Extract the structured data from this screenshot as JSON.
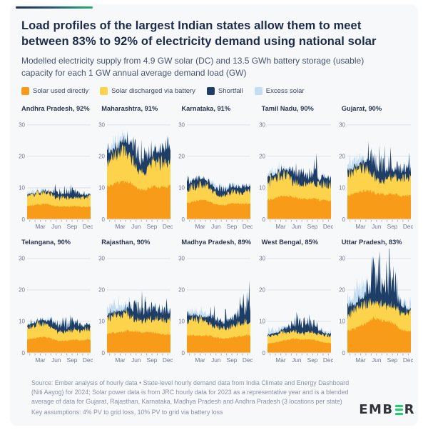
{
  "header": {
    "title": "Load profiles of the largest Indian states allow them to meet between 83% to 92% of electricity demand using national solar",
    "subtitle": "Modelled electricity supply from 4.9 GW solar (DC) and 13.5 GWh battery storage (usable) capacity for each 1 GW annual average demand load (GW)"
  },
  "colors": {
    "solar_direct": "#F79B19",
    "solar_battery": "#FCD34A",
    "shortfall": "#1F3E67",
    "excess_solar": "#C3DDF1",
    "gridline": "#DDE1EB",
    "accent_navy": "#1D3152",
    "accent_green": "#28B16D"
  },
  "legend": [
    {
      "label": "Solar used directly",
      "color": "#F79B19"
    },
    {
      "label": "Solar discharged via battery",
      "color": "#FCD34A"
    },
    {
      "label": "Shortfall",
      "color": "#1F3E67"
    },
    {
      "label": "Excess solar",
      "color": "#C3DDF1"
    }
  ],
  "chart_data": {
    "type": "area",
    "unit": "GW",
    "stack_order": [
      "solar_direct",
      "solar_battery",
      "shortfall",
      "excess_solar"
    ],
    "y_ticks": [
      0,
      10,
      20,
      30
    ],
    "ylim": [
      0,
      32
    ],
    "x_tick_labels": [
      "Mar",
      "Jun",
      "Sep",
      "Dec"
    ],
    "x_months": 12,
    "states": [
      {
        "label": "Andhra Pradesh, 92%",
        "name": "Andhra Pradesh",
        "share": "92%",
        "solar_direct": [
          4.2,
          4.5,
          4.7,
          4.8,
          4.7,
          4.3,
          4.0,
          4.0,
          4.1,
          4.2,
          4.0,
          4.0
        ],
        "solar_battery": [
          3.8,
          4.0,
          4.3,
          4.5,
          4.4,
          3.8,
          3.2,
          3.3,
          3.3,
          3.6,
          3.4,
          3.8
        ],
        "shortfall": [
          0.4,
          0.3,
          0.3,
          0.4,
          0.5,
          1.2,
          1.8,
          1.5,
          1.8,
          1.5,
          1.2,
          0.6
        ],
        "excess_solar": [
          0.6,
          0.8,
          0.7,
          0.5,
          0.4,
          0.2,
          0.1,
          0.1,
          0.3,
          0.3,
          0.3,
          0.5
        ]
      },
      {
        "label": "Maharashtra, 91%",
        "name": "Maharashtra",
        "share": "91%",
        "solar_direct": [
          10.5,
          11.0,
          11.5,
          12.0,
          12.0,
          11.0,
          9.5,
          9.5,
          10.0,
          10.5,
          10.0,
          10.5
        ],
        "solar_battery": [
          10.0,
          10.5,
          11.5,
          12.0,
          11.5,
          9.5,
          6.5,
          7.0,
          8.0,
          9.5,
          9.0,
          10.0
        ],
        "shortfall": [
          2.5,
          2.0,
          1.5,
          2.0,
          2.5,
          4.0,
          4.5,
          4.0,
          4.5,
          3.5,
          4.0,
          3.0
        ],
        "excess_solar": [
          1.5,
          2.5,
          2.5,
          2.0,
          1.5,
          0.5,
          0.2,
          0.2,
          0.5,
          0.8,
          0.8,
          1.0
        ]
      },
      {
        "label": "Karnataka, 91%",
        "name": "Karnataka",
        "share": "91%",
        "solar_direct": [
          5.0,
          5.5,
          6.0,
          6.0,
          5.8,
          5.0,
          4.5,
          4.5,
          4.8,
          5.0,
          4.8,
          5.0
        ],
        "solar_battery": [
          5.0,
          5.5,
          6.0,
          6.0,
          5.5,
          4.5,
          3.5,
          3.8,
          4.0,
          4.5,
          4.3,
          4.8
        ],
        "shortfall": [
          2.0,
          2.0,
          1.8,
          1.5,
          1.5,
          1.5,
          1.5,
          1.5,
          1.8,
          1.5,
          1.3,
          1.5
        ],
        "excess_solar": [
          0.3,
          0.4,
          0.5,
          0.5,
          0.8,
          1.5,
          1.2,
          1.2,
          1.2,
          1.0,
          0.8,
          0.8
        ]
      },
      {
        "label": "Tamil Nadu, 90%",
        "name": "Tamil Nadu",
        "share": "90%",
        "solar_direct": [
          6.0,
          6.5,
          7.0,
          7.5,
          7.5,
          7.0,
          6.5,
          6.5,
          6.5,
          6.5,
          6.0,
          6.0
        ],
        "solar_battery": [
          7.0,
          7.5,
          8.0,
          8.0,
          7.5,
          6.0,
          5.0,
          5.5,
          5.5,
          6.0,
          5.5,
          6.0
        ],
        "shortfall": [
          1.5,
          1.3,
          1.2,
          1.5,
          2.0,
          3.0,
          3.5,
          3.0,
          3.5,
          3.0,
          2.5,
          2.0
        ],
        "excess_solar": [
          1.5,
          1.8,
          1.5,
          1.2,
          0.8,
          0.3,
          0.2,
          0.2,
          0.4,
          0.5,
          0.5,
          0.8
        ]
      },
      {
        "label": "Gujarat, 90%",
        "name": "Gujarat",
        "share": "90%",
        "solar_direct": [
          7.5,
          8.0,
          8.5,
          9.0,
          9.0,
          8.5,
          8.0,
          8.0,
          8.0,
          8.0,
          7.5,
          7.5
        ],
        "solar_battery": [
          7.5,
          8.0,
          8.5,
          8.5,
          8.0,
          6.5,
          5.0,
          5.5,
          6.0,
          6.5,
          6.5,
          7.0
        ],
        "shortfall": [
          1.5,
          1.2,
          1.5,
          2.0,
          3.0,
          4.0,
          4.0,
          3.5,
          3.5,
          3.0,
          2.8,
          2.5
        ],
        "excess_solar": [
          2.5,
          3.0,
          2.5,
          2.0,
          1.2,
          0.5,
          0.2,
          0.2,
          0.5,
          0.5,
          0.5,
          1.0
        ]
      },
      {
        "label": "Telangana, 90%",
        "name": "Telangana",
        "share": "90%",
        "solar_direct": [
          4.2,
          4.5,
          4.8,
          5.0,
          4.8,
          4.2,
          3.8,
          3.8,
          4.0,
          4.2,
          4.0,
          4.2
        ],
        "solar_battery": [
          4.2,
          4.5,
          5.0,
          5.0,
          4.8,
          3.8,
          3.2,
          3.3,
          3.5,
          4.0,
          3.8,
          4.0
        ],
        "shortfall": [
          1.0,
          1.0,
          1.0,
          1.2,
          1.5,
          2.0,
          2.2,
          2.0,
          2.5,
          2.0,
          1.5,
          1.2
        ],
        "excess_solar": [
          0.4,
          0.5,
          0.5,
          0.5,
          0.8,
          1.0,
          0.8,
          0.8,
          0.8,
          0.6,
          0.5,
          0.5
        ]
      },
      {
        "label": "Rajasthan, 90%",
        "name": "Rajasthan",
        "share": "90%",
        "solar_direct": [
          6.0,
          6.2,
          6.5,
          6.8,
          7.0,
          7.0,
          6.5,
          6.5,
          6.5,
          6.5,
          6.0,
          6.0
        ],
        "solar_battery": [
          5.5,
          6.0,
          6.5,
          6.5,
          6.0,
          5.0,
          4.5,
          4.8,
          5.0,
          5.5,
          5.5,
          5.8
        ],
        "shortfall": [
          1.5,
          1.2,
          1.0,
          1.2,
          2.0,
          3.2,
          3.2,
          2.8,
          2.8,
          2.5,
          2.5,
          2.5
        ],
        "excess_solar": [
          2.0,
          2.5,
          3.0,
          2.5,
          2.0,
          0.8,
          0.3,
          0.3,
          0.8,
          0.8,
          0.8,
          1.0
        ]
      },
      {
        "label": "Madhya Pradesh, 89%",
        "name": "Madhya Pradesh",
        "share": "89%",
        "solar_direct": [
          5.5,
          5.5,
          5.5,
          5.5,
          5.5,
          5.2,
          4.8,
          4.5,
          4.8,
          5.0,
          5.2,
          5.5
        ],
        "solar_battery": [
          5.5,
          5.8,
          6.0,
          5.8,
          5.2,
          4.5,
          3.8,
          4.0,
          4.2,
          4.8,
          5.0,
          5.2
        ],
        "shortfall": [
          1.8,
          1.5,
          1.2,
          1.2,
          1.5,
          2.0,
          2.2,
          1.8,
          2.0,
          2.0,
          3.5,
          4.5
        ],
        "excess_solar": [
          0.8,
          1.5,
          1.8,
          1.8,
          1.5,
          0.8,
          0.3,
          0.3,
          0.8,
          0.8,
          0.5,
          0.3
        ]
      },
      {
        "label": "West Bengal, 85%",
        "name": "West Bengal",
        "share": "85%",
        "solar_direct": [
          3.0,
          3.2,
          3.5,
          4.0,
          4.2,
          4.5,
          4.3,
          4.2,
          4.2,
          4.0,
          3.5,
          3.2
        ],
        "solar_battery": [
          2.8,
          3.0,
          3.2,
          3.2,
          3.0,
          2.8,
          2.5,
          2.6,
          2.8,
          2.8,
          2.8,
          2.8
        ],
        "shortfall": [
          0.5,
          0.5,
          0.5,
          0.8,
          1.5,
          2.5,
          2.8,
          2.5,
          2.8,
          2.2,
          1.0,
          0.5
        ],
        "excess_solar": [
          1.5,
          1.8,
          1.5,
          1.2,
          0.8,
          0.3,
          0.2,
          0.2,
          0.3,
          0.5,
          0.6,
          0.8
        ]
      },
      {
        "label": "Uttar Pradesh, 83%",
        "name": "Uttar Pradesh",
        "share": "83%",
        "solar_direct": [
          7.0,
          7.5,
          8.0,
          9.0,
          10.0,
          11.0,
          10.5,
          10.0,
          10.0,
          9.0,
          7.5,
          7.0
        ],
        "solar_battery": [
          6.5,
          7.0,
          7.5,
          7.5,
          7.0,
          6.5,
          6.0,
          6.0,
          6.5,
          6.5,
          6.5,
          6.5
        ],
        "shortfall": [
          1.5,
          1.5,
          1.5,
          2.5,
          4.5,
          7.5,
          7.0,
          6.5,
          7.0,
          5.5,
          2.5,
          1.5
        ],
        "excess_solar": [
          4.0,
          5.0,
          5.5,
          4.5,
          2.5,
          0.8,
          0.3,
          0.3,
          0.8,
          1.5,
          2.5,
          2.5
        ]
      }
    ]
  },
  "footer": {
    "source": "Source: Ember analysis of hourly data • State-level hourly demand data from India Climate and Energy Dashboard (Niti Aayog) for 2024; Solar power data is from JRC hourly data for 2023 as a representative year and is a blended average of data for Gujarat, Rajasthan, Karnataka, Madhya Pradesh and Andhra Pradesh (3 locations per state)",
    "assumptions": "Key assumptions: 4% PV to grid loss, 10% PV to grid via battery loss",
    "logo_left": "EMB",
    "logo_right": "R"
  }
}
